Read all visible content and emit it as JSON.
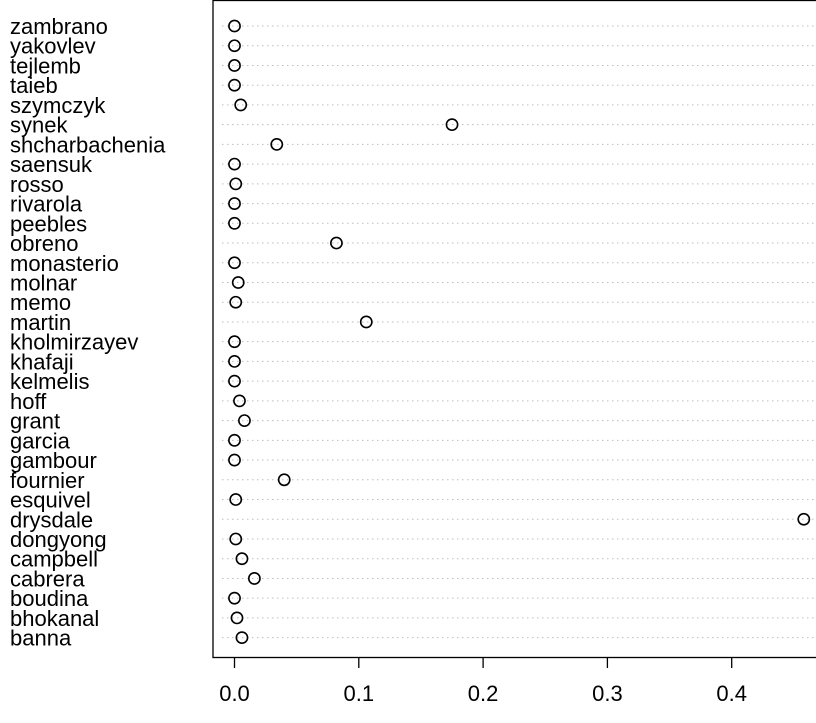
{
  "chart_data": {
    "type": "scatter",
    "subtype": "dotchart",
    "title": "",
    "xlabel": "",
    "ylabel": "",
    "xlim": [
      -0.04,
      0.46
    ],
    "x_ticks": [
      0.0,
      0.1,
      0.2,
      0.3,
      0.4
    ],
    "x_tick_labels": [
      "0.0",
      "0.1",
      "0.2",
      "0.3",
      "0.4"
    ],
    "grid": "horizontal dotted guides",
    "categories": [
      "zambrano",
      "yakovlev",
      "tejlemb",
      "taieb",
      "szymczyk",
      "synek",
      "shcharbachenia",
      "saensuk",
      "rosso",
      "rivarola",
      "peebles",
      "obreno",
      "monasterio",
      "molnar",
      "memo",
      "martin",
      "kholmirzayev",
      "khafaji",
      "kelmelis",
      "hoff",
      "grant",
      "garcia",
      "gambour",
      "fournier",
      "esquivel",
      "drysdale",
      "dongyong",
      "campbell",
      "cabrera",
      "boudina",
      "bhokanal",
      "banna"
    ],
    "values": [
      0.0,
      0.0,
      0.0,
      0.0,
      0.005,
      0.175,
      0.034,
      0.0,
      0.001,
      0.0,
      0.0,
      0.082,
      0.0,
      0.003,
      0.001,
      0.106,
      0.0,
      0.0,
      0.0,
      0.004,
      0.008,
      0.0,
      0.0,
      0.04,
      0.001,
      0.458,
      0.001,
      0.006,
      0.016,
      0.0,
      0.002,
      0.006
    ],
    "marker": "open-circle",
    "colors": {
      "marker": "#000000",
      "guide": "#bdbdbd",
      "frame": "#000000"
    }
  }
}
